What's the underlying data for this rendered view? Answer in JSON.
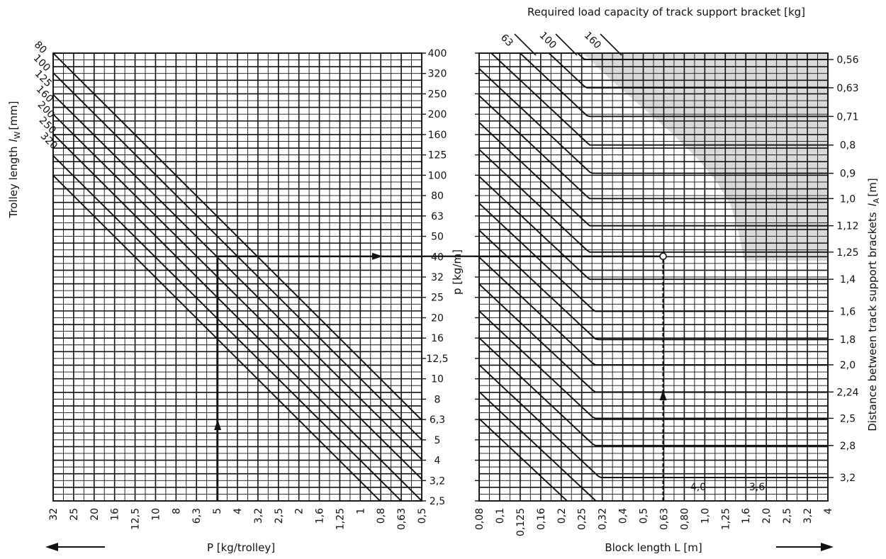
{
  "chart_data": [
    {
      "type": "line",
      "name_note": "left nomogram",
      "xlabel": "P [kg/trolley]",
      "x_ticks": [
        "32",
        "25",
        "20",
        "16",
        "12,5",
        "10",
        "8",
        "6,3",
        "5",
        "4",
        "3,2",
        "2,5",
        "2",
        "1,6",
        "1,25",
        "1",
        "0,8",
        "0,63",
        "0,5"
      ],
      "ylabel": "p [kg/m]",
      "y_ticks": [
        "400",
        "320",
        "250",
        "200",
        "160",
        "125",
        "100",
        "80",
        "63",
        "50",
        "40",
        "32",
        "25",
        "20",
        "16",
        "12,5",
        "10",
        "8",
        "6,3",
        "5",
        "4",
        "3,2",
        "2,5"
      ],
      "series_label": "Trolley length l_W [mm]",
      "series": [
        {
          "name": "80",
          "x": [
            32,
            0.5
          ],
          "y": [
            400,
            6.25
          ]
        },
        {
          "name": "100",
          "x": [
            32,
            0.5
          ],
          "y": [
            320,
            5
          ]
        },
        {
          "name": "125",
          "x": [
            32,
            0.5
          ],
          "y": [
            250,
            4
          ]
        },
        {
          "name": "160",
          "x": [
            32,
            0.5
          ],
          "y": [
            200,
            3.2
          ]
        },
        {
          "name": "200",
          "x": [
            32,
            0.5
          ],
          "y": [
            160,
            2.5
          ]
        },
        {
          "name": "250",
          "x": [
            32,
            0.63
          ],
          "y": [
            125,
            2.5
          ]
        },
        {
          "name": "320",
          "x": [
            32,
            0.8
          ],
          "y": [
            100,
            2.5
          ]
        }
      ],
      "example": {
        "P": 5,
        "p": 40
      }
    },
    {
      "type": "line",
      "name_note": "right nomogram",
      "title": "Required load capacity of track support bracket [kg]",
      "xlabel": "Block length L [m]",
      "x_ticks": [
        "0,08",
        "0,1",
        "0,125",
        "0,16",
        "0,2",
        "0,25",
        "0,32",
        "0,4",
        "0,5",
        "0,63",
        "0,80",
        "1,0",
        "1,25",
        "1,6",
        "2,0",
        "2,5",
        "3,2",
        "4"
      ],
      "ylabel_right": "Distance between track support brackets l_A [m]",
      "y_ticks_right": [
        "0,56",
        "0,63",
        "0,71",
        "0,8",
        "0,9",
        "1,0",
        "1,12",
        "1,25",
        "1,4",
        "1,6",
        "1,8",
        "2,0",
        "2,24",
        "2,5",
        "2,8",
        "3,2"
      ],
      "capacity_labels": [
        "63",
        "100",
        "160"
      ],
      "line_labels": [
        "4,0",
        "3,6"
      ],
      "series": [
        {
          "name": "0,56",
          "lA": 0.56
        },
        {
          "name": "0,63",
          "lA": 0.63
        },
        {
          "name": "0,71",
          "lA": 0.71
        },
        {
          "name": "0,8",
          "lA": 0.8
        },
        {
          "name": "0,9",
          "lA": 0.9
        },
        {
          "name": "1,0",
          "lA": 1.0
        },
        {
          "name": "1,12",
          "lA": 1.12
        },
        {
          "name": "1,25",
          "lA": 1.25
        },
        {
          "name": "1,4",
          "lA": 1.4
        },
        {
          "name": "1,6",
          "lA": 1.6
        },
        {
          "name": "1,8",
          "lA": 1.8
        },
        {
          "name": "2,0",
          "lA": 2.0
        },
        {
          "name": "2,24",
          "lA": 2.24
        },
        {
          "name": "2,5",
          "lA": 2.5
        },
        {
          "name": "2,8",
          "lA": 2.8
        },
        {
          "name": "3,2",
          "lA": 3.2
        },
        {
          "name": "3,6",
          "lA": 3.6
        },
        {
          "name": "4,0",
          "lA": 4.0
        }
      ],
      "example": {
        "L": 0.63,
        "p": 40,
        "lA": 1.6
      }
    }
  ],
  "labels": {
    "left_axis_text": "Trolley length",
    "left_axis_symbol": "l",
    "left_axis_sub": "W",
    "left_axis_unit": "[mm]",
    "left_p_axis": "p [kg/m]",
    "left_x": "P [kg/trolley]",
    "right_x": "Block length L [m]",
    "right_title": "Required load capacity of track support bracket [kg]",
    "right_axis_text": "Distance between track support brackets",
    "right_axis_symbol": "l",
    "right_axis_sub": "A",
    "right_axis_unit": "[m]"
  },
  "colors": {
    "ink": "#111111",
    "shade": "#d9d9d9",
    "paper": "#ffffff"
  }
}
